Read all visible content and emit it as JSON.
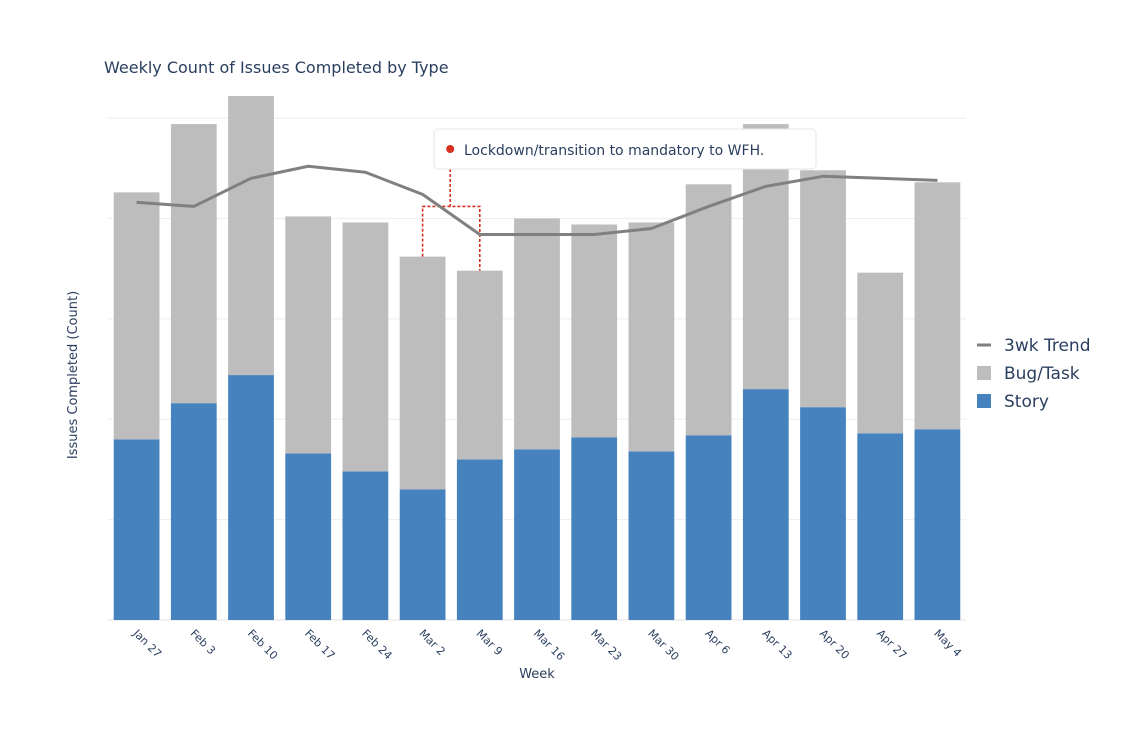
{
  "chart_data": {
    "type": "bar",
    "stacked": true,
    "title": "Weekly Count of Issues Completed by Type",
    "xlabel": "Week",
    "ylabel": "Issues Completed (Count)",
    "ylim": [
      0,
      26
    ],
    "gridlines": [
      0,
      5,
      10,
      15,
      20,
      25
    ],
    "y_tick_labels_visible": false,
    "categories": [
      "Jan 27",
      "Feb 3",
      "Feb 10",
      "Feb 17",
      "Feb 24",
      "Mar 2",
      "Mar 9",
      "Mar 16",
      "Mar 23",
      "Mar 30",
      "Apr 6",
      "Apr 13",
      "Apr 20",
      "Apr 27",
      "May 4"
    ],
    "series": [
      {
        "name": "Story",
        "kind": "bar",
        "color": "#4682be",
        "values": [
          9.0,
          10.8,
          12.2,
          8.3,
          7.4,
          6.5,
          8.0,
          8.5,
          9.1,
          8.4,
          9.2,
          11.5,
          10.6,
          9.3,
          9.5
        ]
      },
      {
        "name": "Bug/Task",
        "kind": "bar",
        "color": "#bdbdbd",
        "values": [
          12.3,
          13.9,
          13.9,
          11.8,
          12.4,
          11.6,
          9.4,
          11.5,
          10.6,
          11.4,
          12.5,
          13.2,
          11.8,
          8.0,
          12.3
        ]
      },
      {
        "name": "3wk Trend",
        "kind": "line",
        "color": "#808080",
        "values": [
          20.8,
          20.6,
          22.0,
          22.6,
          22.3,
          21.2,
          19.2,
          19.2,
          19.2,
          19.5,
          20.6,
          21.6,
          22.1,
          22.0,
          21.9
        ]
      }
    ],
    "legend": {
      "position": "right",
      "order": [
        "3wk Trend",
        "Bug/Task",
        "Story"
      ]
    },
    "annotation": {
      "text": "Lockdown/transition to mandatory to WFH.",
      "color": "#d7301f",
      "bracket_from": "Mar 2",
      "bracket_to": "Mar 9",
      "bracket_level": 20.6
    }
  }
}
